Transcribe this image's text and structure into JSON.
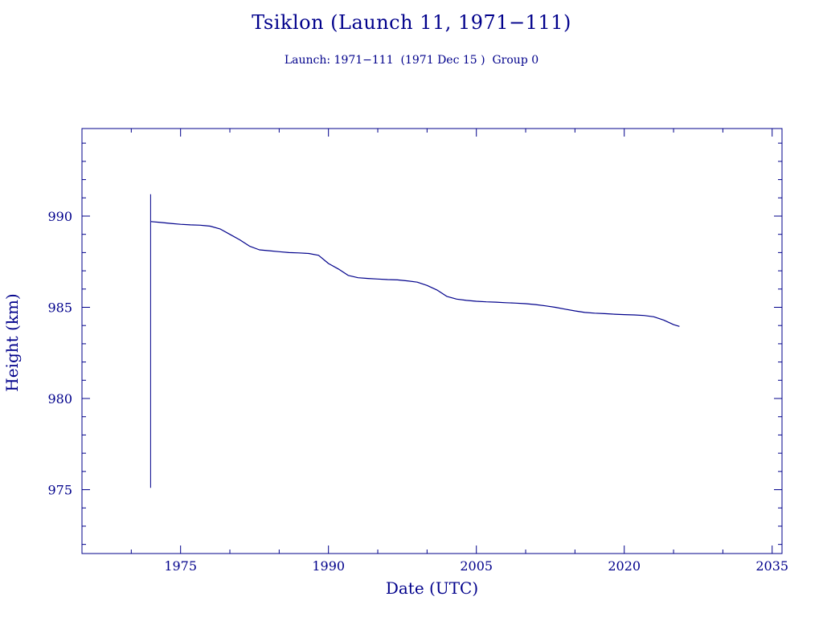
{
  "chart_data": {
    "type": "line",
    "title": "Tsiklon (Launch 11, 1971−111)",
    "subtitle": "Launch: 1971−111  (1971 Dec 15 )  Group 0",
    "xlabel": "Date (UTC)",
    "ylabel": "Height (km)",
    "xlim": [
      1965,
      2036
    ],
    "ylim": [
      971.5,
      994.8
    ],
    "x_ticks": [
      1975,
      1990,
      2005,
      2020,
      2035
    ],
    "x_tick_labels": [
      "1975",
      "1990",
      "2005",
      "2020",
      "2035"
    ],
    "y_ticks": [
      975,
      980,
      985,
      990
    ],
    "y_tick_labels": [
      "975",
      "980",
      "985",
      "990"
    ],
    "grid": false,
    "colors": {
      "axes": "#00008b",
      "line": "#00008b",
      "text": "#00008b"
    },
    "spike": {
      "x": 1971.96,
      "y_min": 975.1,
      "y_max": 991.2
    },
    "series": [
      {
        "x": [
          1972.0,
          1973.0,
          1974.0,
          1975.0,
          1976.0,
          1977.0,
          1978.0,
          1979.0,
          1980.0,
          1981.0,
          1982.0,
          1983.0,
          1984.0,
          1985.0,
          1986.0,
          1987.0,
          1988.0,
          1989.0,
          1990.0,
          1991.0,
          1992.0,
          1993.0,
          1994.0,
          1995.0,
          1996.0,
          1997.0,
          1998.0,
          1999.0,
          2000.0,
          2001.0,
          2002.0,
          2003.0,
          2004.0,
          2005.0,
          2006.0,
          2007.0,
          2008.0,
          2009.0,
          2010.0,
          2011.0,
          2012.0,
          2013.0,
          2014.0,
          2015.0,
          2016.0,
          2017.0,
          2018.0,
          2019.0,
          2020.0,
          2021.0,
          2022.0,
          2023.0,
          2024.0,
          2025.0,
          2025.6
        ],
        "values": [
          989.7,
          989.65,
          989.6,
          989.55,
          989.52,
          989.5,
          989.45,
          989.3,
          989.0,
          988.7,
          988.35,
          988.15,
          988.1,
          988.05,
          988.0,
          987.98,
          987.95,
          987.85,
          987.4,
          987.1,
          986.75,
          986.62,
          986.58,
          986.55,
          986.52,
          986.5,
          986.45,
          986.38,
          986.2,
          985.95,
          985.6,
          985.45,
          985.38,
          985.33,
          985.3,
          985.28,
          985.25,
          985.23,
          985.2,
          985.15,
          985.08,
          985.0,
          984.9,
          984.8,
          984.72,
          984.68,
          984.65,
          984.62,
          984.6,
          984.58,
          984.55,
          984.48,
          984.3,
          984.05,
          983.95
        ]
      }
    ]
  }
}
